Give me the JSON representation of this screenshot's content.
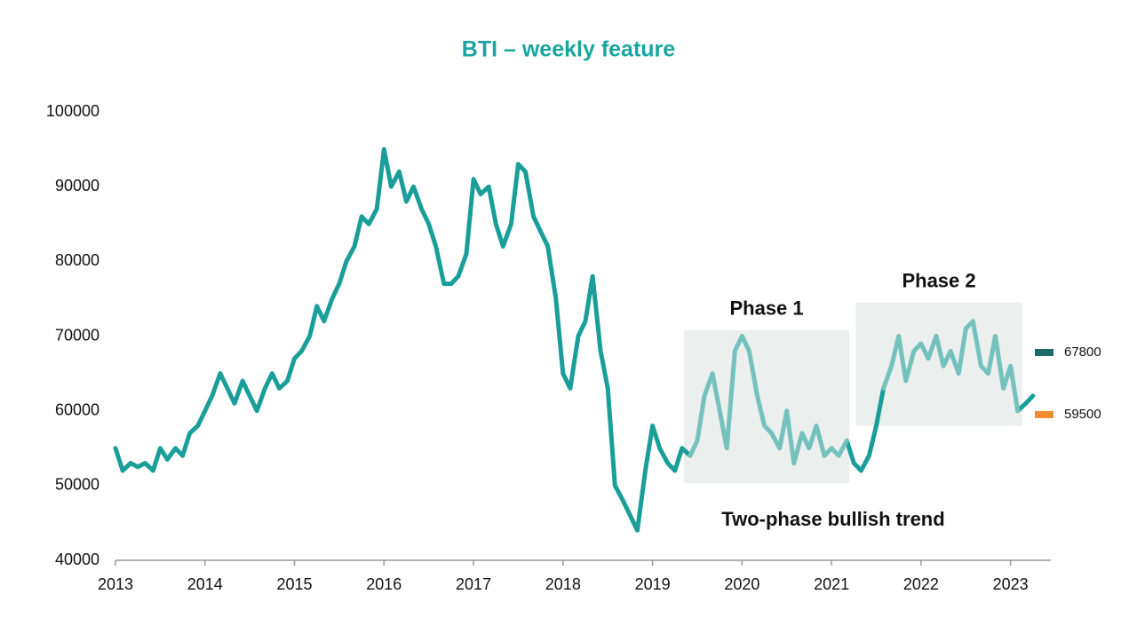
{
  "chart_data": {
    "type": "line",
    "title": "BTI – weekly feature",
    "x": [
      2013,
      2013.08,
      2013.17,
      2013.25,
      2013.33,
      2013.42,
      2013.5,
      2013.58,
      2013.67,
      2013.75,
      2013.83,
      2013.92,
      2014,
      2014.08,
      2014.17,
      2014.25,
      2014.33,
      2014.42,
      2014.5,
      2014.58,
      2014.67,
      2014.75,
      2014.83,
      2014.92,
      2015,
      2015.08,
      2015.17,
      2015.25,
      2015.33,
      2015.42,
      2015.5,
      2015.58,
      2015.67,
      2015.75,
      2015.83,
      2015.92,
      2016,
      2016.08,
      2016.17,
      2016.25,
      2016.33,
      2016.42,
      2016.5,
      2016.58,
      2016.67,
      2016.75,
      2016.83,
      2016.92,
      2017,
      2017.08,
      2017.17,
      2017.25,
      2017.33,
      2017.42,
      2017.5,
      2017.58,
      2017.67,
      2017.75,
      2017.83,
      2017.92,
      2018,
      2018.08,
      2018.17,
      2018.25,
      2018.33,
      2018.42,
      2018.5,
      2018.58,
      2018.67,
      2018.75,
      2018.83,
      2018.92,
      2019,
      2019.08,
      2019.17,
      2019.25,
      2019.33,
      2019.42,
      2019.5,
      2019.58,
      2019.67,
      2019.75,
      2019.83,
      2019.92,
      2020,
      2020.08,
      2020.17,
      2020.25,
      2020.33,
      2020.42,
      2020.5,
      2020.58,
      2020.67,
      2020.75,
      2020.83,
      2020.92,
      2021,
      2021.08,
      2021.17,
      2021.25,
      2021.33,
      2021.42,
      2021.5,
      2021.58,
      2021.67,
      2021.75,
      2021.83,
      2021.92,
      2022,
      2022.08,
      2022.17,
      2022.25,
      2022.33,
      2022.42,
      2022.5,
      2022.58,
      2022.67,
      2022.75,
      2022.83,
      2022.92,
      2023,
      2023.08,
      2023.17,
      2023.25
    ],
    "series": [
      {
        "color": "#1a9e9a",
        "values": [
          55000,
          52000,
          53000,
          52500,
          53000,
          52000,
          55000,
          53500,
          55000,
          54000,
          57000,
          58000,
          60000,
          62000,
          65000,
          63000,
          61000,
          64000,
          62000,
          60000,
          63000,
          65000,
          63000,
          64000,
          67000,
          68000,
          70000,
          74000,
          72000,
          75000,
          77000,
          80000,
          82000,
          86000,
          85000,
          87000,
          95000,
          90000,
          92000,
          88000,
          90000,
          87000,
          85000,
          82000,
          77000,
          77000,
          78000,
          81000,
          91000,
          89000,
          90000,
          85000,
          82000,
          85000,
          93000,
          92000,
          86000,
          84000,
          82000,
          75000,
          65000,
          63000,
          70000,
          72000,
          78000,
          68000,
          63000,
          50000,
          48000,
          46000,
          44000,
          52000,
          58000,
          55000,
          53000,
          52000,
          55000,
          54000,
          null,
          null,
          null,
          null,
          null,
          null,
          null,
          null,
          null,
          null,
          null,
          null,
          null,
          null,
          null,
          null,
          null,
          null,
          null,
          null,
          56000,
          53000,
          52000,
          54000,
          58000,
          63000,
          null,
          null,
          null,
          null,
          null,
          null,
          null,
          null,
          null,
          null,
          null,
          null,
          null,
          null,
          null,
          null,
          null,
          60000,
          61000,
          62000
        ]
      },
      {
        "color": "#74c1bd",
        "values": [
          null,
          null,
          null,
          null,
          null,
          null,
          null,
          null,
          null,
          null,
          null,
          null,
          null,
          null,
          null,
          null,
          null,
          null,
          null,
          null,
          null,
          null,
          null,
          null,
          null,
          null,
          null,
          null,
          null,
          null,
          null,
          null,
          null,
          null,
          null,
          null,
          null,
          null,
          null,
          null,
          null,
          null,
          null,
          null,
          null,
          null,
          null,
          null,
          null,
          null,
          null,
          null,
          null,
          null,
          null,
          null,
          null,
          null,
          null,
          null,
          null,
          null,
          null,
          null,
          null,
          null,
          null,
          null,
          null,
          null,
          null,
          null,
          null,
          null,
          null,
          null,
          null,
          54000,
          56000,
          62000,
          65000,
          60000,
          55000,
          68000,
          70000,
          68000,
          62000,
          58000,
          57000,
          55000,
          60000,
          53000,
          57000,
          55000,
          58000,
          54000,
          55000,
          54000,
          56000,
          null,
          null,
          null,
          null,
          63000,
          66000,
          70000,
          64000,
          68000,
          69000,
          67000,
          70000,
          66000,
          68000,
          65000,
          71000,
          72000,
          66000,
          65000,
          70000,
          63000,
          66000,
          60000,
          null,
          null
        ]
      }
    ],
    "xlim": [
      2013,
      2023.45
    ],
    "xticks": [
      2013,
      2014,
      2015,
      2016,
      2017,
      2018,
      2019,
      2020,
      2021,
      2022,
      2023
    ],
    "ylim": [
      40000,
      100000
    ],
    "yticks": [
      40000,
      50000,
      60000,
      70000,
      80000,
      90000,
      100000
    ],
    "highlights": [
      {
        "label": "Phase 1",
        "x": [
          2019.35,
          2021.2
        ],
        "y": [
          50300,
          70800
        ]
      },
      {
        "label": "Phase 2",
        "x": [
          2021.27,
          2023.13
        ],
        "y": [
          58000,
          74500
        ]
      }
    ],
    "annotation": "Two-phase bullish trend",
    "markers": [
      {
        "value": 67800,
        "color": "#1d6b68"
      },
      {
        "value": 59500,
        "color": "#f28a2e"
      }
    ]
  }
}
